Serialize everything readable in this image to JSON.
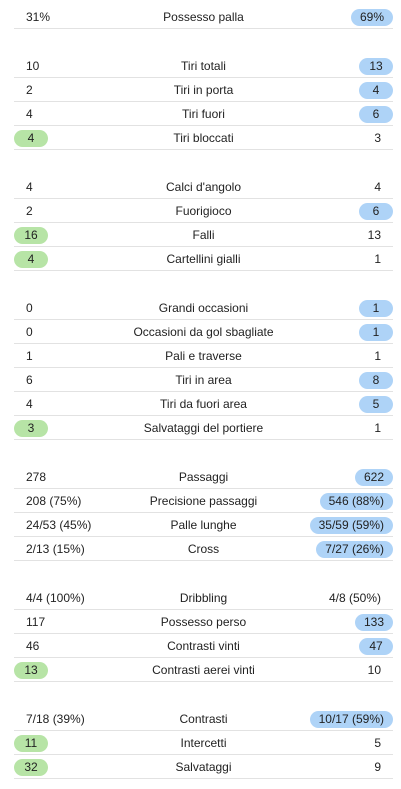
{
  "colors": {
    "highlight_home": "#b7e4a6",
    "highlight_away": "#aed3f7",
    "divider": "#e2e2e2"
  },
  "groups": [
    {
      "rows": [
        {
          "label": "Possesso palla",
          "home": "31%",
          "away": "69%",
          "highlight": "away"
        }
      ]
    },
    {
      "rows": [
        {
          "label": "Tiri totali",
          "home": "10",
          "away": "13",
          "highlight": "away"
        },
        {
          "label": "Tiri in porta",
          "home": "2",
          "away": "4",
          "highlight": "away"
        },
        {
          "label": "Tiri fuori",
          "home": "4",
          "away": "6",
          "highlight": "away"
        },
        {
          "label": "Tiri bloccati",
          "home": "4",
          "away": "3",
          "highlight": "home"
        }
      ]
    },
    {
      "rows": [
        {
          "label": "Calci d'angolo",
          "home": "4",
          "away": "4",
          "highlight": "none"
        },
        {
          "label": "Fuorigioco",
          "home": "2",
          "away": "6",
          "highlight": "away"
        },
        {
          "label": "Falli",
          "home": "16",
          "away": "13",
          "highlight": "home"
        },
        {
          "label": "Cartellini gialli",
          "home": "4",
          "away": "1",
          "highlight": "home"
        }
      ]
    },
    {
      "rows": [
        {
          "label": "Grandi occasioni",
          "home": "0",
          "away": "1",
          "highlight": "away"
        },
        {
          "label": "Occasioni da gol sbagliate",
          "home": "0",
          "away": "1",
          "highlight": "away"
        },
        {
          "label": "Pali e traverse",
          "home": "1",
          "away": "1",
          "highlight": "none"
        },
        {
          "label": "Tiri in area",
          "home": "6",
          "away": "8",
          "highlight": "away"
        },
        {
          "label": "Tiri da fuori area",
          "home": "4",
          "away": "5",
          "highlight": "away"
        },
        {
          "label": "Salvataggi del portiere",
          "home": "3",
          "away": "1",
          "highlight": "home"
        }
      ]
    },
    {
      "rows": [
        {
          "label": "Passaggi",
          "home": "278",
          "away": "622",
          "highlight": "away"
        },
        {
          "label": "Precisione passaggi",
          "home": "208 (75%)",
          "away": "546 (88%)",
          "highlight": "away"
        },
        {
          "label": "Palle lunghe",
          "home": "24/53 (45%)",
          "away": "35/59 (59%)",
          "highlight": "away"
        },
        {
          "label": "Cross",
          "home": "2/13 (15%)",
          "away": "7/27 (26%)",
          "highlight": "away"
        }
      ]
    },
    {
      "rows": [
        {
          "label": "Dribbling",
          "home": "4/4 (100%)",
          "away": "4/8 (50%)",
          "highlight": "none"
        },
        {
          "label": "Possesso perso",
          "home": "117",
          "away": "133",
          "highlight": "away"
        },
        {
          "label": "Contrasti vinti",
          "home": "46",
          "away": "47",
          "highlight": "away"
        },
        {
          "label": "Contrasti aerei vinti",
          "home": "13",
          "away": "10",
          "highlight": "home"
        }
      ]
    },
    {
      "rows": [
        {
          "label": "Contrasti",
          "home": "7/18 (39%)",
          "away": "10/17 (59%)",
          "highlight": "away"
        },
        {
          "label": "Intercetti",
          "home": "11",
          "away": "5",
          "highlight": "home"
        },
        {
          "label": "Salvataggi",
          "home": "32",
          "away": "9",
          "highlight": "home"
        }
      ]
    }
  ]
}
